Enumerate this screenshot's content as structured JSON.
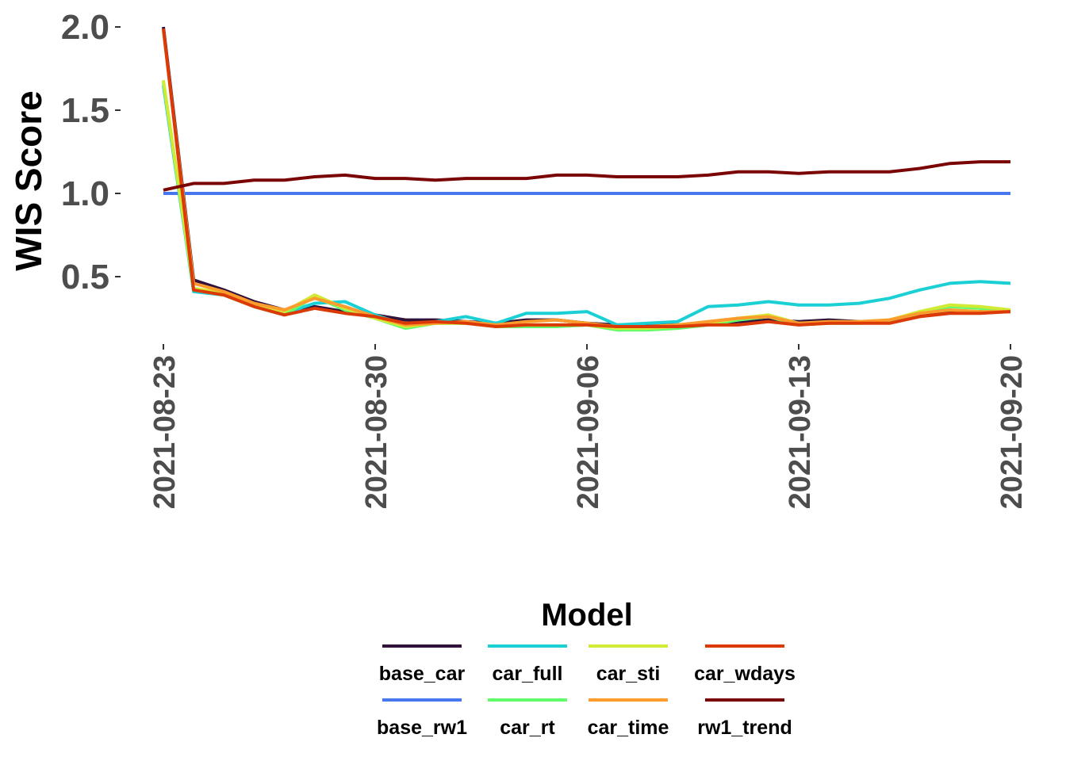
{
  "chart_data": {
    "type": "line",
    "title": "",
    "xlabel": "",
    "ylabel": "WIS Score",
    "x": [
      "2021-08-23",
      "2021-08-24",
      "2021-08-25",
      "2021-08-26",
      "2021-08-27",
      "2021-08-28",
      "2021-08-29",
      "2021-08-30",
      "2021-08-31",
      "2021-09-01",
      "2021-09-02",
      "2021-09-03",
      "2021-09-04",
      "2021-09-05",
      "2021-09-06",
      "2021-09-07",
      "2021-09-08",
      "2021-09-09",
      "2021-09-10",
      "2021-09-11",
      "2021-09-12",
      "2021-09-13",
      "2021-09-14",
      "2021-09-15",
      "2021-09-16",
      "2021-09-17",
      "2021-09-18",
      "2021-09-19",
      "2021-09-20"
    ],
    "x_ticks": [
      "2021-08-23",
      "2021-08-30",
      "2021-09-06",
      "2021-09-13",
      "2021-09-20"
    ],
    "y_ticks": [
      "0.5",
      "1.0",
      "1.5",
      "2.0"
    ],
    "ylim": [
      0.15,
      2.05
    ],
    "grid": false,
    "legend": {
      "title": "Model",
      "position": "bottom"
    },
    "series": [
      {
        "name": "base_car",
        "color": "#30123b",
        "values": [
          2.0,
          0.48,
          0.42,
          0.35,
          0.3,
          0.32,
          0.29,
          0.27,
          0.24,
          0.24,
          0.23,
          0.22,
          0.24,
          0.24,
          0.22,
          0.21,
          0.21,
          0.21,
          0.22,
          0.23,
          0.24,
          0.23,
          0.24,
          0.23,
          0.23,
          0.27,
          0.29,
          0.29,
          0.29
        ]
      },
      {
        "name": "base_rw1",
        "color": "#4777ef",
        "values": [
          1.0,
          1.0,
          1.0,
          1.0,
          1.0,
          1.0,
          1.0,
          1.0,
          1.0,
          1.0,
          1.0,
          1.0,
          1.0,
          1.0,
          1.0,
          1.0,
          1.0,
          1.0,
          1.0,
          1.0,
          1.0,
          1.0,
          1.0,
          1.0,
          1.0,
          1.0,
          1.0,
          1.0,
          1.0
        ]
      },
      {
        "name": "car_full",
        "color": "#1bd0d5",
        "values": [
          1.65,
          0.41,
          0.39,
          0.33,
          0.28,
          0.34,
          0.35,
          0.27,
          0.21,
          0.23,
          0.26,
          0.22,
          0.28,
          0.28,
          0.29,
          0.21,
          0.22,
          0.23,
          0.32,
          0.33,
          0.35,
          0.33,
          0.33,
          0.34,
          0.37,
          0.42,
          0.46,
          0.47,
          0.46
        ]
      },
      {
        "name": "car_rt",
        "color": "#62fc6b",
        "values": [
          1.67,
          0.42,
          0.39,
          0.32,
          0.27,
          0.38,
          0.3,
          0.25,
          0.19,
          0.22,
          0.22,
          0.2,
          0.2,
          0.2,
          0.21,
          0.18,
          0.18,
          0.19,
          0.21,
          0.24,
          0.26,
          0.21,
          0.22,
          0.22,
          0.23,
          0.28,
          0.32,
          0.31,
          0.29
        ]
      },
      {
        "name": "car_sti",
        "color": "#d2e935",
        "values": [
          1.68,
          0.43,
          0.4,
          0.33,
          0.29,
          0.39,
          0.31,
          0.25,
          0.2,
          0.22,
          0.22,
          0.2,
          0.21,
          0.21,
          0.21,
          0.19,
          0.19,
          0.2,
          0.22,
          0.25,
          0.27,
          0.22,
          0.22,
          0.23,
          0.24,
          0.29,
          0.33,
          0.32,
          0.3
        ]
      },
      {
        "name": "car_time",
        "color": "#fe9b2d",
        "values": [
          1.98,
          0.46,
          0.41,
          0.34,
          0.3,
          0.37,
          0.32,
          0.26,
          0.21,
          0.22,
          0.23,
          0.21,
          0.23,
          0.24,
          0.22,
          0.2,
          0.2,
          0.21,
          0.23,
          0.25,
          0.26,
          0.22,
          0.23,
          0.23,
          0.24,
          0.28,
          0.3,
          0.29,
          0.29
        ]
      },
      {
        "name": "car_wdays",
        "color": "#db3a07",
        "values": [
          1.99,
          0.42,
          0.39,
          0.32,
          0.27,
          0.31,
          0.28,
          0.26,
          0.22,
          0.23,
          0.22,
          0.2,
          0.21,
          0.21,
          0.21,
          0.2,
          0.2,
          0.2,
          0.21,
          0.21,
          0.23,
          0.21,
          0.22,
          0.22,
          0.22,
          0.26,
          0.28,
          0.28,
          0.29
        ]
      },
      {
        "name": "rw1_trend",
        "color": "#7a0403",
        "values": [
          1.02,
          1.06,
          1.06,
          1.08,
          1.08,
          1.1,
          1.11,
          1.09,
          1.09,
          1.08,
          1.09,
          1.09,
          1.09,
          1.11,
          1.11,
          1.1,
          1.1,
          1.1,
          1.11,
          1.13,
          1.13,
          1.12,
          1.13,
          1.13,
          1.13,
          1.15,
          1.18,
          1.19,
          1.19
        ]
      }
    ]
  }
}
